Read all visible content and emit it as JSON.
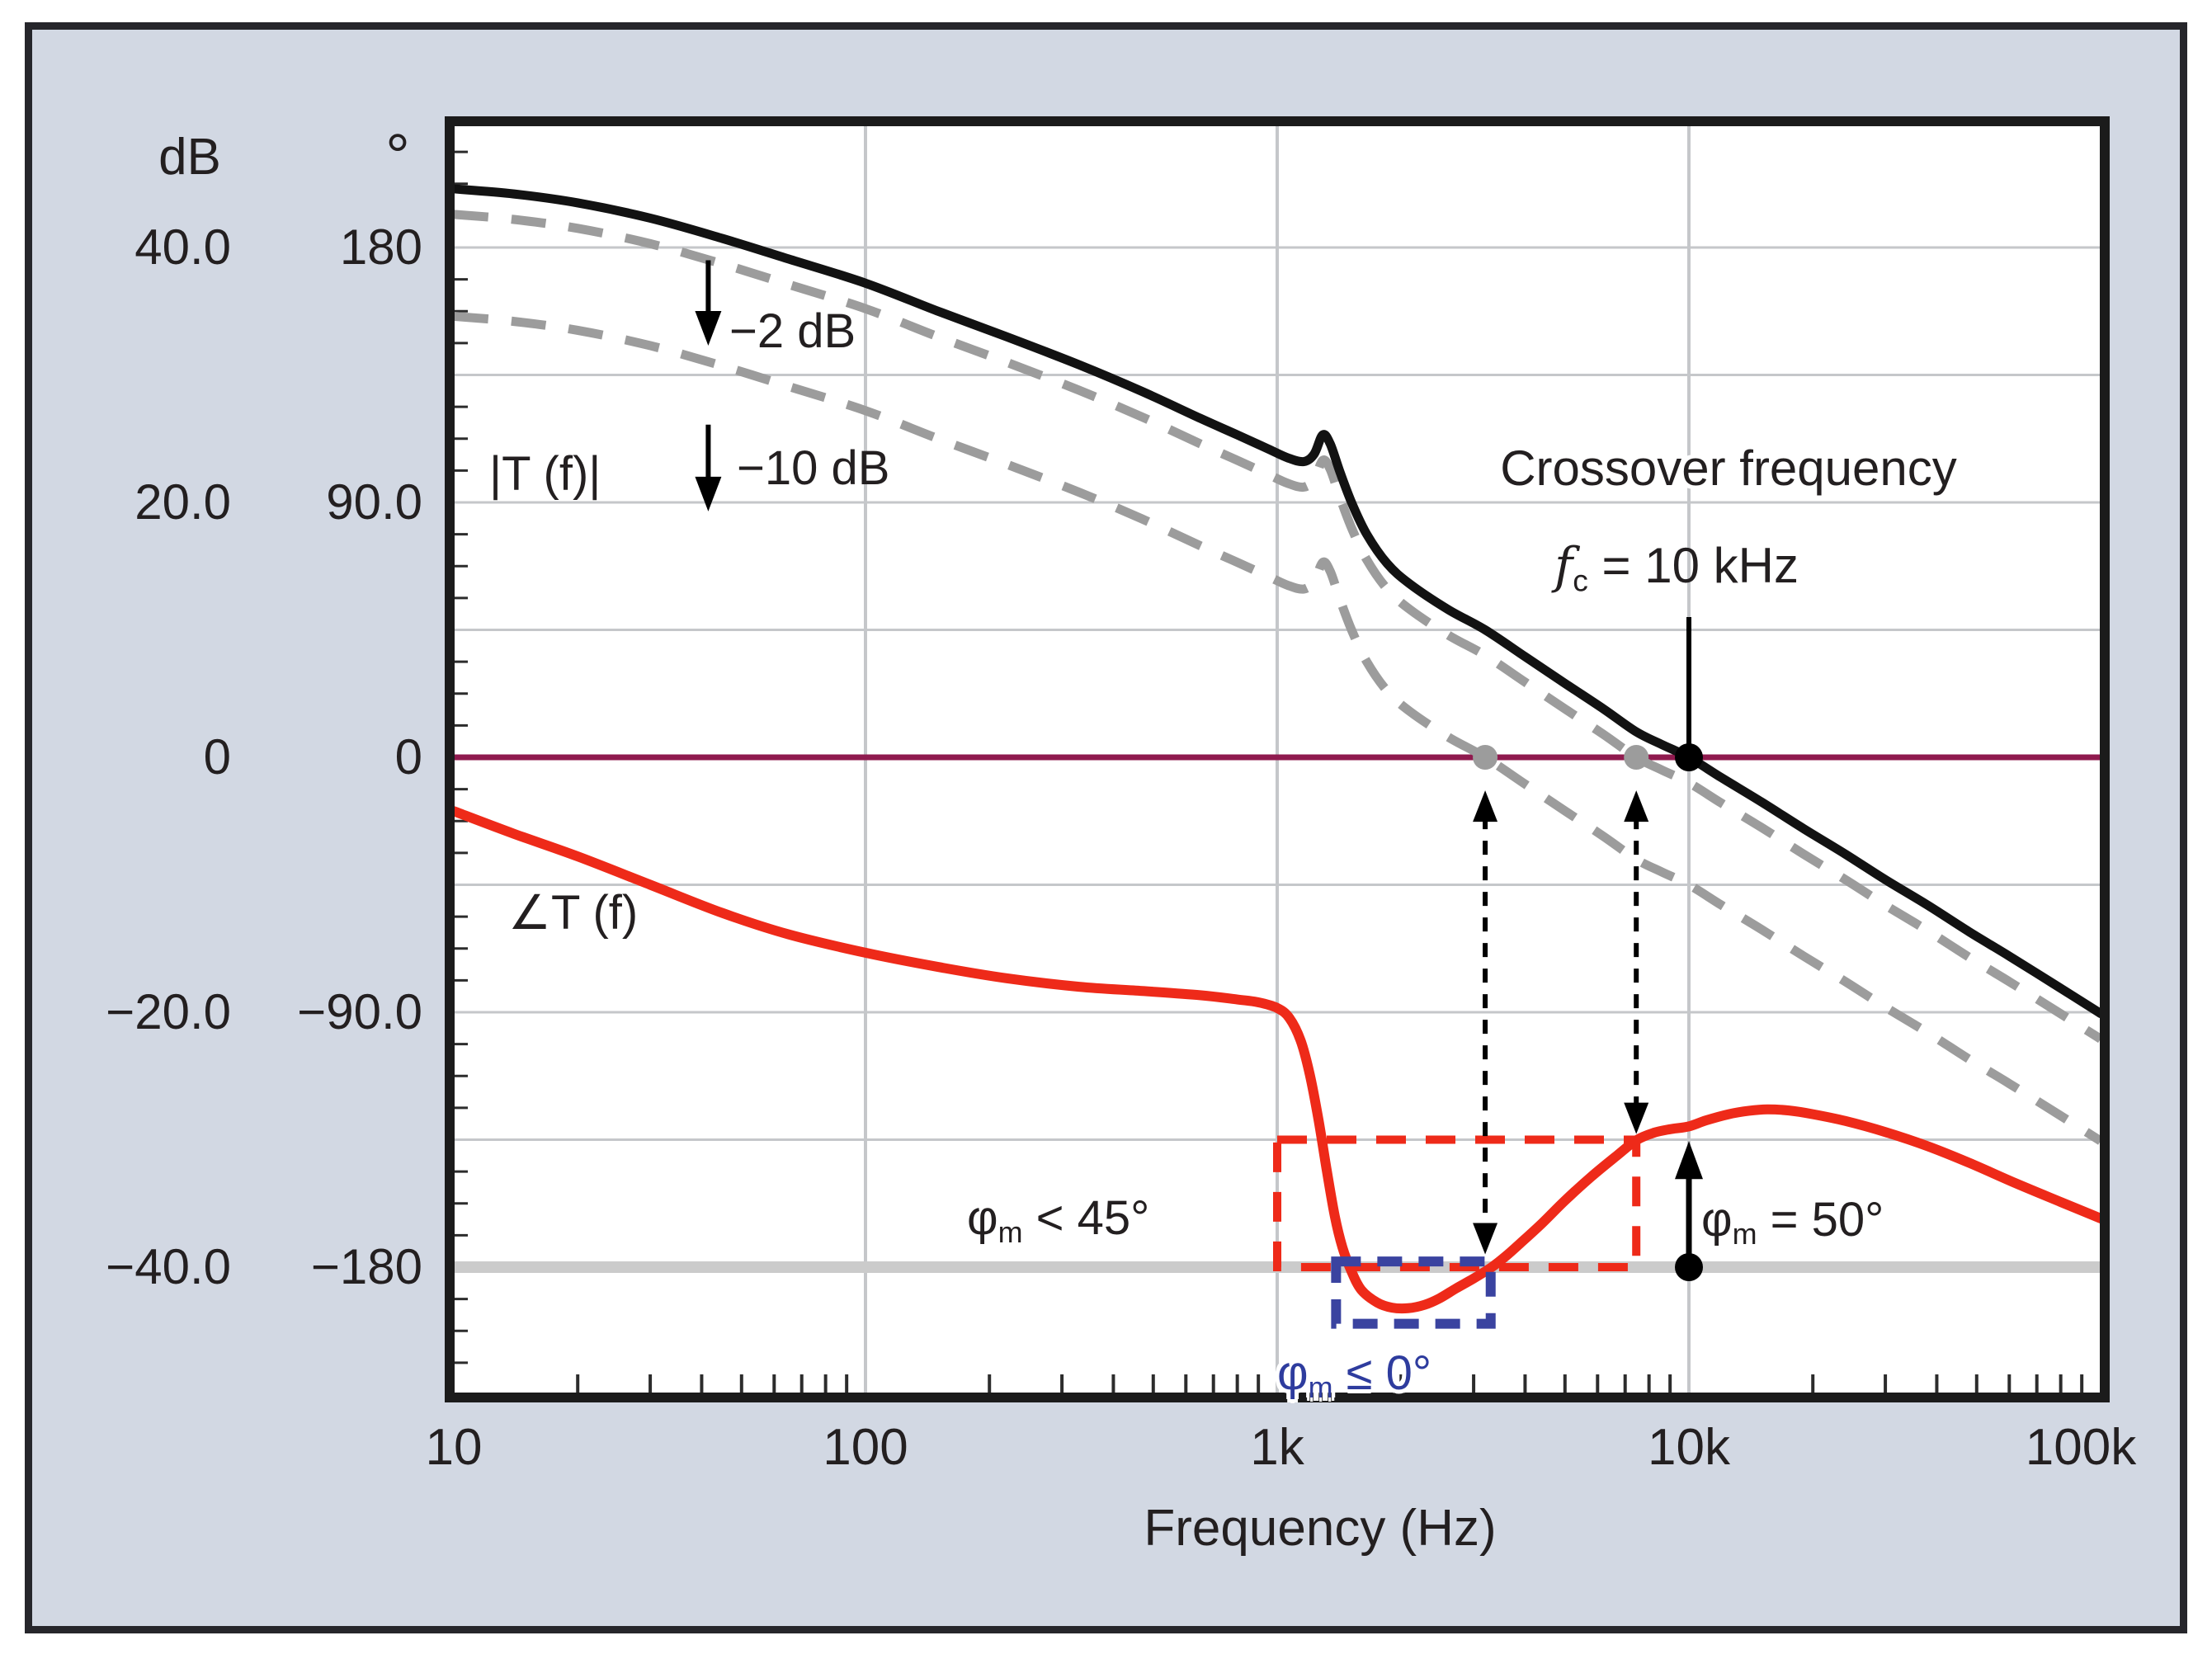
{
  "figure": {
    "kind": "Bode plot of loop gain T(f) showing crossover frequency and phase margin",
    "panel_bg": "#d2d8e3",
    "panel_border": "#26262b",
    "text_color": "#231f20",
    "plot_bg": "#ffffff",
    "grid_color": "#c5c7ca",
    "thick_line_color": "#cbcbcb",
    "zero_db_line_color": "#8f1a4e"
  },
  "axes": {
    "x": {
      "label": "Frequency (Hz)",
      "scale": "log",
      "min_hz": 10,
      "max_hz": 100000,
      "ticks": [
        {
          "hz": 10,
          "label": "10"
        },
        {
          "hz": 100,
          "label": "100"
        },
        {
          "hz": 1000,
          "label": "1k"
        },
        {
          "hz": 10000,
          "label": "10k"
        },
        {
          "hz": 100000,
          "label": "100k"
        }
      ]
    },
    "y_db": {
      "header": "dB",
      "lim": [
        -50,
        50
      ],
      "ticks": [
        {
          "db": 40,
          "label": "40.0"
        },
        {
          "db": 20,
          "label": "20.0"
        },
        {
          "db": 0,
          "label": "0"
        },
        {
          "db": -20,
          "label": "−20.0"
        },
        {
          "db": -40,
          "label": "−40.0"
        }
      ]
    },
    "y_deg": {
      "header": "°",
      "lim": [
        -225,
        225
      ],
      "ticks": [
        {
          "deg": 180,
          "label": "180"
        },
        {
          "deg": 90,
          "label": "90.0"
        },
        {
          "deg": 0,
          "label": "0"
        },
        {
          "deg": -90,
          "label": "−90.0"
        },
        {
          "deg": -180,
          "label": "−180"
        }
      ]
    },
    "grid_deg": [
      180,
      135,
      90,
      45,
      -45,
      -90,
      -135
    ],
    "zero_line_deg": 0,
    "thick_line_deg": -180
  },
  "chart_data": {
    "type": "line",
    "title": "",
    "xlabel": "Frequency (Hz)",
    "x_unit": "Hz",
    "grid": true,
    "series": [
      {
        "name": "|T (f)| loop gain magnitude",
        "unit": "dB",
        "color": "#121212",
        "style": "solid",
        "points": [
          [
            10,
            44.6
          ],
          [
            14,
            44.2
          ],
          [
            20,
            43.5
          ],
          [
            30,
            42.3
          ],
          [
            45,
            40.7
          ],
          [
            65,
            39.1
          ],
          [
            100,
            37.2
          ],
          [
            150,
            35.0
          ],
          [
            220,
            33.0
          ],
          [
            330,
            30.8
          ],
          [
            470,
            28.7
          ],
          [
            650,
            26.6
          ],
          [
            800,
            25.3
          ],
          [
            950,
            24.2
          ],
          [
            1060,
            23.5
          ],
          [
            1160,
            23.2
          ],
          [
            1230,
            23.8
          ],
          [
            1290,
            25.3
          ],
          [
            1345,
            24.6
          ],
          [
            1420,
            22.4
          ],
          [
            1520,
            19.9
          ],
          [
            1650,
            17.5
          ],
          [
            1850,
            15.2
          ],
          [
            2100,
            13.6
          ],
          [
            2600,
            11.6
          ],
          [
            3200,
            10.0
          ],
          [
            4000,
            7.9
          ],
          [
            5000,
            5.8
          ],
          [
            6200,
            3.8
          ],
          [
            7450,
            2.0
          ],
          [
            8600,
            1.0
          ],
          [
            10000,
            0.0
          ],
          [
            12000,
            -1.6
          ],
          [
            15000,
            -3.5
          ],
          [
            19000,
            -5.6
          ],
          [
            24000,
            -7.6
          ],
          [
            30000,
            -9.6
          ],
          [
            38000,
            -11.6
          ],
          [
            48000,
            -13.7
          ],
          [
            60000,
            -15.6
          ],
          [
            78000,
            -17.9
          ],
          [
            100000,
            -20.1
          ]
        ]
      },
      {
        "name": "|T (f)| shifted by −2 dB",
        "unit": "dB",
        "color": "#9c9c9c",
        "style": "dashed",
        "offset_db": -2
      },
      {
        "name": "|T (f)| shifted by −10 dB",
        "unit": "dB",
        "color": "#9c9c9c",
        "style": "dashed",
        "offset_db": -10
      },
      {
        "name": "∠T (f) loop phase",
        "unit": "deg",
        "color": "#ee2a19",
        "style": "solid",
        "points": [
          [
            10,
            -19
          ],
          [
            14,
            -27
          ],
          [
            20,
            -35
          ],
          [
            30,
            -45
          ],
          [
            45,
            -55
          ],
          [
            65,
            -62.5
          ],
          [
            100,
            -69
          ],
          [
            150,
            -74
          ],
          [
            220,
            -78
          ],
          [
            330,
            -81
          ],
          [
            470,
            -82.5
          ],
          [
            650,
            -84
          ],
          [
            800,
            -85.5
          ],
          [
            900,
            -86.5
          ],
          [
            1000,
            -88.5
          ],
          [
            1070,
            -92
          ],
          [
            1140,
            -100
          ],
          [
            1200,
            -112
          ],
          [
            1260,
            -128
          ],
          [
            1320,
            -146
          ],
          [
            1380,
            -162
          ],
          [
            1440,
            -173
          ],
          [
            1510,
            -181
          ],
          [
            1600,
            -188
          ],
          [
            1750,
            -192.5
          ],
          [
            1900,
            -194.3
          ],
          [
            2080,
            -194.5
          ],
          [
            2280,
            -193.3
          ],
          [
            2480,
            -191
          ],
          [
            2720,
            -187.5
          ],
          [
            3000,
            -184
          ],
          [
            3320,
            -180
          ],
          [
            3600,
            -176
          ],
          [
            3900,
            -171.5
          ],
          [
            4400,
            -164.5
          ],
          [
            5000,
            -156.5
          ],
          [
            5800,
            -148
          ],
          [
            6700,
            -140.5
          ],
          [
            7450,
            -135.2
          ],
          [
            8200,
            -132.6
          ],
          [
            9000,
            -131.3
          ],
          [
            10000,
            -130.3
          ],
          [
            11000,
            -128.2
          ],
          [
            12500,
            -126
          ],
          [
            14000,
            -124.8
          ],
          [
            15500,
            -124.3
          ],
          [
            17500,
            -124.7
          ],
          [
            20000,
            -126
          ],
          [
            24000,
            -128.4
          ],
          [
            30000,
            -132.3
          ],
          [
            38000,
            -137.3
          ],
          [
            48000,
            -143.2
          ],
          [
            62000,
            -150.3
          ],
          [
            80000,
            -157
          ],
          [
            100000,
            -162.8
          ]
        ]
      }
    ]
  },
  "labels": {
    "magnitude_curve": "|T (f)|",
    "phase_curve": "∠T (f)",
    "minus_2db": "−2 dB",
    "minus_10db": "−10 dB"
  },
  "annotations": {
    "crossover": {
      "title": "Crossover frequency",
      "fc_sym": "f",
      "fc_sub": "c",
      "fc_rest": " = 10 kHz",
      "line_hz": 10000,
      "line_top_deg": 49.5,
      "dot_db": 0
    },
    "phase_margin_50": {
      "sym": "φ",
      "sub": "m",
      "rest": " = 50°",
      "arrow_hz": 10000,
      "from_deg": -180,
      "to_deg": -135.5
    },
    "phase_margin_45": {
      "sym": "φ",
      "sub": "m",
      "rest": " <  45°",
      "box_hz": [
        1000,
        7450
      ],
      "box_deg": [
        -135,
        -180
      ],
      "color": "#ee2a19"
    },
    "phase_margin_0": {
      "sym": "φ",
      "sub": "m",
      "rest": " ≤ 0°",
      "box_hz": [
        1390,
        3300
      ],
      "box_deg": [
        -178,
        -200
      ],
      "color": "#3a43a0"
    },
    "gray_dots": [
      {
        "hz": 3200,
        "db": 0
      },
      {
        "hz": 7450,
        "db": 0
      }
    ],
    "black_dots": [
      {
        "hz": 10000,
        "db": 0
      },
      {
        "hz": 10000,
        "deg": -180
      }
    ],
    "dashed_arrows": [
      {
        "hz": 3200,
        "from_db": -1.3,
        "to_deg": -175.5
      },
      {
        "hz": 7450,
        "from_db": -1.3,
        "to_deg": -133
      }
    ],
    "shift_arrows": [
      {
        "label_key": "minus_2db",
        "hz": 41.5,
        "from_db": 39.0,
        "to_db": 32.3
      },
      {
        "label_key": "minus_10db",
        "hz": 41.5,
        "from_db": 26.1,
        "to_db": 19.3
      }
    ]
  }
}
